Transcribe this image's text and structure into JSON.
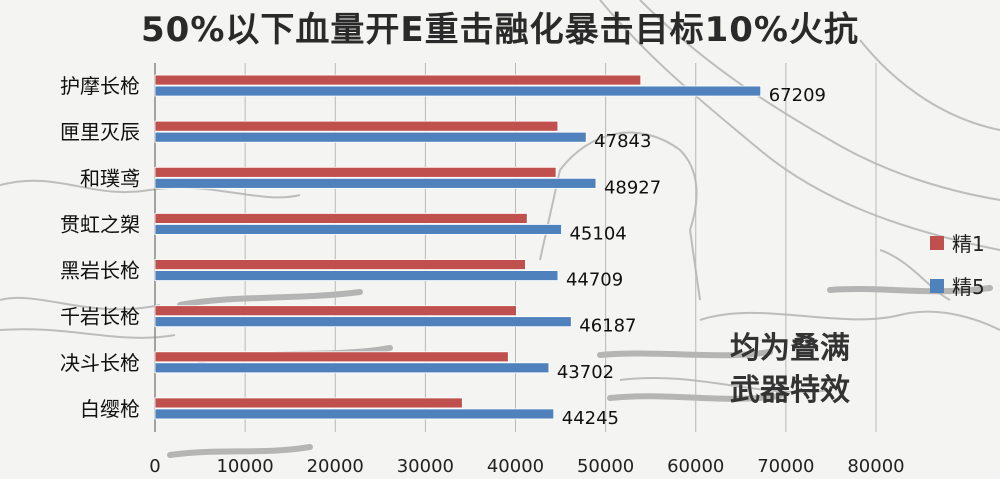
{
  "chart_data": {
    "type": "bar",
    "orientation": "horizontal",
    "title": "50%以下血量开E重击融化暴击目标10%火抗",
    "categories": [
      "护摩长枪",
      "匣里灭辰",
      "和璞鸢",
      "贯虹之槊",
      "黑岩长枪",
      "千岩长枪",
      "决斗长枪",
      "白缨枪"
    ],
    "series": [
      {
        "name": "精1",
        "color": "#c0504d",
        "values": [
          53900,
          44700,
          44500,
          41300,
          41100,
          40100,
          39200,
          34100
        ],
        "labels_shown": false
      },
      {
        "name": "精5",
        "color": "#4f81bd",
        "values": [
          67209,
          47843,
          48927,
          45104,
          44709,
          46187,
          43702,
          44245
        ],
        "labels_shown": true
      }
    ],
    "xlim": [
      0,
      80000
    ],
    "xticks": [
      0,
      10000,
      20000,
      30000,
      40000,
      50000,
      60000,
      70000,
      80000
    ],
    "grid": "vertical",
    "legend_position": "right"
  },
  "note": [
    "均为叠满",
    "武器特效"
  ]
}
